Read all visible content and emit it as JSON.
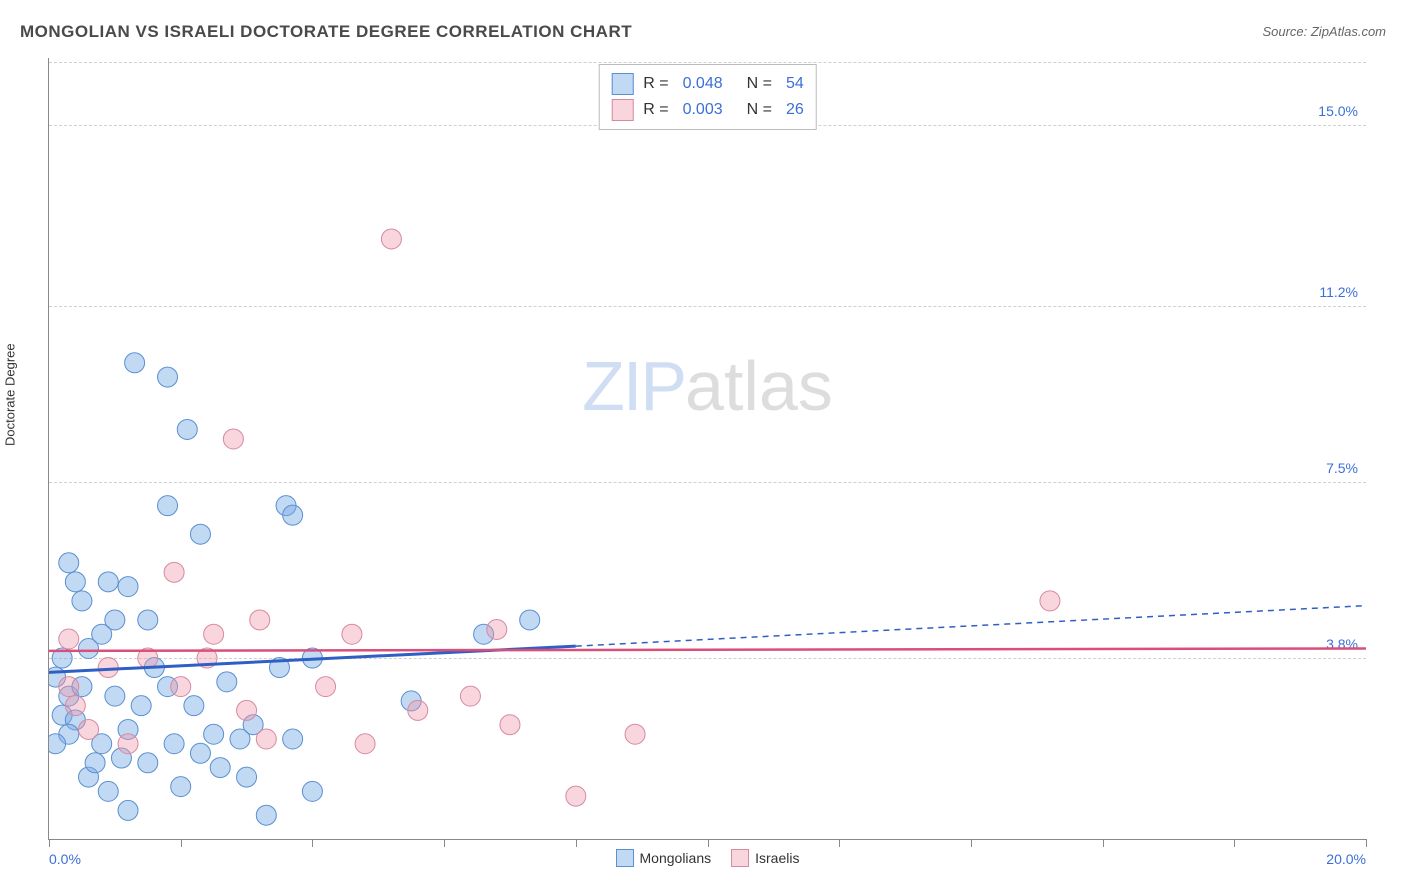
{
  "title": "MONGOLIAN VS ISRAELI DOCTORATE DEGREE CORRELATION CHART",
  "source": "Source: ZipAtlas.com",
  "y_axis_label": "Doctorate Degree",
  "watermark": {
    "left": "ZIP",
    "right": "atlas"
  },
  "colors": {
    "series_a_fill": "rgba(120,170,230,0.45)",
    "series_a_stroke": "#5a8fd0",
    "series_b_fill": "rgba(240,150,170,0.40)",
    "series_b_stroke": "#d68aa0",
    "trend_a": "#2f5fc4",
    "trend_b": "#d94f7a",
    "grid": "#d0d0d0",
    "tick_text": "#3b6fd8",
    "title_text": "#4a4a4a"
  },
  "y_gridlines": [
    {
      "value": 3.8,
      "label": "3.8%"
    },
    {
      "value": 7.5,
      "label": "7.5%"
    },
    {
      "value": 11.2,
      "label": "11.2%"
    },
    {
      "value": 15.0,
      "label": "15.0%"
    }
  ],
  "y_domain": [
    0,
    16.4
  ],
  "x_domain": [
    0,
    20
  ],
  "x_ticks": [
    0,
    2,
    4,
    6,
    8,
    10,
    12,
    14,
    16,
    18,
    20
  ],
  "x_min_label": "0.0%",
  "x_max_label": "20.0%",
  "bottom_legend": [
    {
      "label": "Mongolians",
      "swatch_fill": "rgba(120,170,230,0.45)",
      "swatch_stroke": "#5a8fd0"
    },
    {
      "label": "Israelis",
      "swatch_fill": "rgba(240,150,170,0.40)",
      "swatch_stroke": "#d68aa0"
    }
  ],
  "top_legend": [
    {
      "swatch_fill": "rgba(120,170,230,0.45)",
      "swatch_stroke": "#5a8fd0",
      "r_label": "R =",
      "r_value": "0.048",
      "n_label": "N =",
      "n_value": "54"
    },
    {
      "swatch_fill": "rgba(240,150,170,0.40)",
      "swatch_stroke": "#d68aa0",
      "r_label": "R =",
      "r_value": "0.003",
      "n_label": "N =",
      "n_value": "26"
    }
  ],
  "marker_radius": 10,
  "series_a_points": [
    [
      0.2,
      3.8
    ],
    [
      0.1,
      3.4
    ],
    [
      0.3,
      3.0
    ],
    [
      0.2,
      2.6
    ],
    [
      0.4,
      2.5
    ],
    [
      0.3,
      2.2
    ],
    [
      0.1,
      2.0
    ],
    [
      0.6,
      4.0
    ],
    [
      0.8,
      4.3
    ],
    [
      1.0,
      4.6
    ],
    [
      0.5,
      5.0
    ],
    [
      0.4,
      5.4
    ],
    [
      0.9,
      5.4
    ],
    [
      1.2,
      5.3
    ],
    [
      0.3,
      5.8
    ],
    [
      1.3,
      10.0
    ],
    [
      1.8,
      9.7
    ],
    [
      1.8,
      7.0
    ],
    [
      2.1,
      8.6
    ],
    [
      2.3,
      6.4
    ],
    [
      0.6,
      1.3
    ],
    [
      0.9,
      1.0
    ],
    [
      1.2,
      0.6
    ],
    [
      1.5,
      1.6
    ],
    [
      1.6,
      3.6
    ],
    [
      1.5,
      4.6
    ],
    [
      1.9,
      2.0
    ],
    [
      2.0,
      1.1
    ],
    [
      2.3,
      1.8
    ],
    [
      2.5,
      2.2
    ],
    [
      2.6,
      1.5
    ],
    [
      2.9,
      2.1
    ],
    [
      3.0,
      1.3
    ],
    [
      3.1,
      2.4
    ],
    [
      3.3,
      0.5
    ],
    [
      3.5,
      3.6
    ],
    [
      3.7,
      2.1
    ],
    [
      3.6,
      7.0
    ],
    [
      3.7,
      6.8
    ],
    [
      4.0,
      1.0
    ],
    [
      4.0,
      3.8
    ],
    [
      5.5,
      2.9
    ],
    [
      6.6,
      4.3
    ],
    [
      7.3,
      4.6
    ],
    [
      0.5,
      3.2
    ],
    [
      1.0,
      3.0
    ],
    [
      1.2,
      2.3
    ],
    [
      1.4,
      2.8
    ],
    [
      0.8,
      2.0
    ],
    [
      0.7,
      1.6
    ],
    [
      2.2,
      2.8
    ],
    [
      2.7,
      3.3
    ],
    [
      1.1,
      1.7
    ],
    [
      1.8,
      3.2
    ]
  ],
  "series_b_points": [
    [
      0.3,
      3.2
    ],
    [
      0.4,
      2.8
    ],
    [
      0.6,
      2.3
    ],
    [
      0.3,
      4.2
    ],
    [
      1.9,
      5.6
    ],
    [
      2.5,
      4.3
    ],
    [
      2.8,
      8.4
    ],
    [
      3.0,
      2.7
    ],
    [
      3.2,
      4.6
    ],
    [
      3.3,
      2.1
    ],
    [
      4.6,
      4.3
    ],
    [
      4.8,
      2.0
    ],
    [
      5.2,
      12.6
    ],
    [
      5.6,
      2.7
    ],
    [
      6.4,
      3.0
    ],
    [
      6.8,
      4.4
    ],
    [
      7.0,
      2.4
    ],
    [
      8.0,
      0.9
    ],
    [
      8.9,
      2.2
    ],
    [
      15.2,
      5.0
    ],
    [
      1.5,
      3.8
    ],
    [
      2.0,
      3.2
    ],
    [
      1.2,
      2.0
    ],
    [
      0.9,
      3.6
    ],
    [
      2.4,
      3.8
    ],
    [
      4.2,
      3.2
    ]
  ],
  "trend_lines": {
    "a": {
      "solid": [
        [
          0,
          3.5
        ],
        [
          8,
          4.05
        ]
      ],
      "dashed": [
        [
          8,
          4.05
        ],
        [
          20,
          4.9
        ]
      ]
    },
    "b": {
      "solid": [
        [
          0,
          3.95
        ],
        [
          20,
          4.0
        ]
      ]
    }
  }
}
